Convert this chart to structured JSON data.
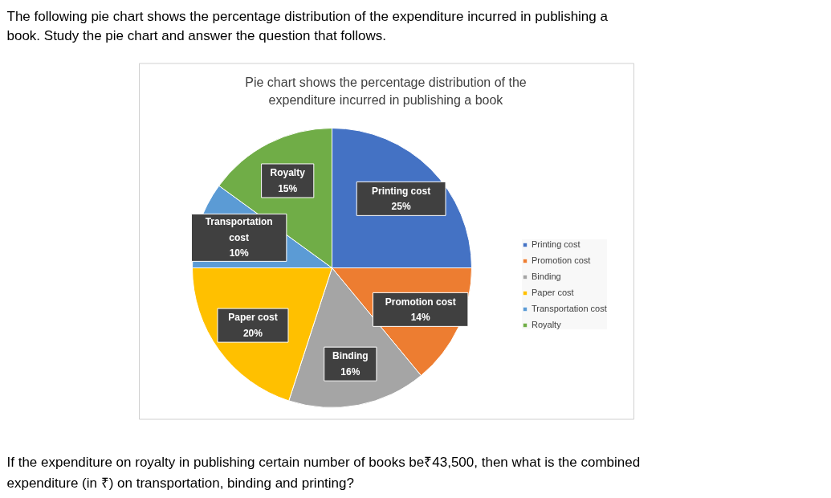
{
  "chart_data": {
    "type": "pie",
    "title": "Pie chart shows the percentage distribution of the expenditure incurred in publishing a book",
    "categories": [
      "Printing cost",
      "Promotion cost",
      "Binding",
      "Paper cost",
      "Transportation cost",
      "Royalty"
    ],
    "values": [
      25,
      14,
      16,
      20,
      10,
      15
    ],
    "value_labels": [
      "25%",
      "14%",
      "16%",
      "20%",
      "10%",
      "15%"
    ],
    "colors": [
      "#4472c4",
      "#ed7d31",
      "#a5a5a5",
      "#ffc000",
      "#5b9bd5",
      "#70ad47"
    ],
    "legend": "right",
    "annotations": [
      "The following pie chart shows the percentage distribution of the expenditure incurred in publishing a book. Study the pie chart and answer the question that follows.",
      "If the expenditure on royalty in publishing certain number of books be₹43,500, then what is the combined expenditure (in ₹) on transportation, binding and printing?"
    ]
  }
}
